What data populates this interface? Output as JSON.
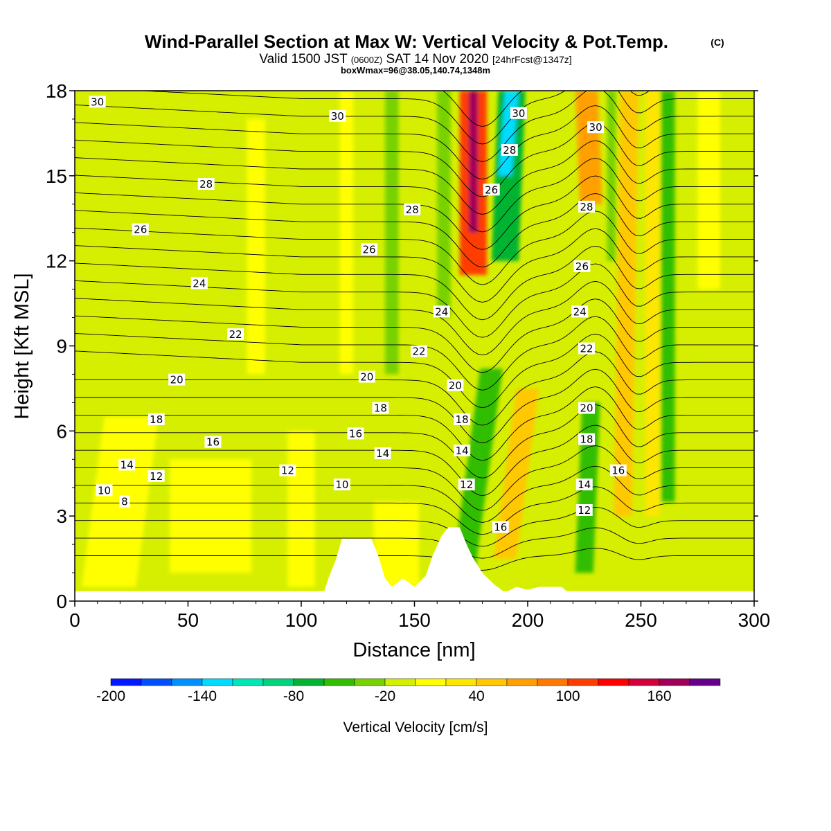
{
  "title": "Wind-Parallel Section at Max W: Vertical Velocity & Pot.Temp.",
  "copyright_mark": "(C)",
  "valid_line": {
    "prefix": "Valid 1500 JST",
    "utc": "(0600Z)",
    "date": "SAT 14 Nov 2020",
    "forecast": "[24hrFcst@1347z]"
  },
  "box_line": "boxWmax=96@38.05,140.74,1348m",
  "colors": {
    "background_field": "#d6ef00",
    "terrain": "#ffffff"
  },
  "chart_data": {
    "type": "heatmap",
    "xlabel": "Distance [nm]",
    "ylabel": "Height [Kft MSL]",
    "xlim": [
      0,
      300
    ],
    "ylim": [
      0,
      18
    ],
    "x_ticks": [
      "0",
      "50",
      "100",
      "150",
      "200",
      "250",
      "300"
    ],
    "y_ticks": [
      "0",
      "3",
      "6",
      "9",
      "12",
      "15",
      "18"
    ],
    "x_tick_values": [
      0,
      50,
      100,
      150,
      200,
      250,
      300
    ],
    "y_tick_values": [
      0,
      3,
      6,
      9,
      12,
      15,
      18
    ],
    "colorbar": {
      "label": "Vertical Velocity [cm/s]",
      "tick_labels": [
        "-200",
        "-140",
        "-80",
        "-20",
        "40",
        "100",
        "160"
      ],
      "tick_values": [
        -200,
        -140,
        -80,
        -20,
        40,
        100,
        160
      ],
      "bins": [
        -200,
        -180,
        -160,
        -140,
        -120,
        -100,
        -80,
        -60,
        -40,
        -20,
        0,
        20,
        40,
        60,
        80,
        100,
        120,
        140,
        160,
        180,
        200
      ],
      "colors": [
        "#0019ff",
        "#0050ff",
        "#0090ff",
        "#00dcff",
        "#00e6b4",
        "#00d27d",
        "#00b432",
        "#32be00",
        "#78d200",
        "#d2f000",
        "#ffff00",
        "#ffe600",
        "#ffc800",
        "#ffa000",
        "#ff7800",
        "#ff3c00",
        "#ff0000",
        "#d2003c",
        "#a0005a",
        "#64008c"
      ]
    },
    "terrain_nm_kft": [
      [
        110,
        0.3
      ],
      [
        112,
        0.8
      ],
      [
        115,
        1.4
      ],
      [
        118,
        2.2
      ],
      [
        131,
        2.2
      ],
      [
        134,
        1.6
      ],
      [
        137,
        0.8
      ],
      [
        140,
        0.5
      ],
      [
        145,
        0.8
      ],
      [
        150,
        0.5
      ],
      [
        155,
        0.9
      ],
      [
        158,
        1.6
      ],
      [
        162,
        2.3
      ],
      [
        165,
        2.6
      ],
      [
        170,
        2.6
      ],
      [
        173,
        2.0
      ],
      [
        176,
        1.5
      ],
      [
        180,
        1.0
      ],
      [
        185,
        0.6
      ],
      [
        190,
        0.3
      ],
      [
        195,
        0.5
      ],
      [
        200,
        0.4
      ],
      [
        205,
        0.5
      ],
      [
        210,
        0.5
      ],
      [
        215,
        0.5
      ],
      [
        218,
        0.3
      ]
    ],
    "velocity_features": [
      {
        "x": 176,
        "x_top": 176,
        "y_bottom": 11.5,
        "y_top": 18,
        "half_width_nm": 6,
        "value_cms": 110
      },
      {
        "x": 176,
        "x_top": 176,
        "y_bottom": 13,
        "y_top": 18,
        "half_width_nm": 2,
        "value_cms": 170
      },
      {
        "x": 190,
        "x_top": 193,
        "y_bottom": 12,
        "y_top": 18,
        "half_width_nm": 6,
        "value_cms": -80
      },
      {
        "x": 190,
        "x_top": 193,
        "y_bottom": 15,
        "y_top": 18,
        "half_width_nm": 3,
        "value_cms": -130
      },
      {
        "x": 228,
        "x_top": 226,
        "y_bottom": 14,
        "y_top": 18,
        "half_width_nm": 5,
        "value_cms": 70
      },
      {
        "x": 172,
        "x_top": 184,
        "y_bottom": 1.2,
        "y_top": 8.2,
        "half_width_nm": 5,
        "value_cms": -60
      },
      {
        "x": 190,
        "x_top": 200,
        "y_bottom": 1.5,
        "y_top": 7.5,
        "half_width_nm": 5,
        "value_cms": 50
      },
      {
        "x": 225,
        "x_top": 228,
        "y_bottom": 1.0,
        "y_top": 7.0,
        "half_width_nm": 4,
        "value_cms": -50
      },
      {
        "x": 242,
        "x_top": 245,
        "y_bottom": 3.0,
        "y_top": 18,
        "half_width_nm": 4,
        "value_cms": 40
      },
      {
        "x": 262,
        "x_top": 262,
        "y_bottom": 3.5,
        "y_top": 18,
        "half_width_nm": 3,
        "value_cms": -50
      },
      {
        "x": 237,
        "x_top": 237,
        "y_bottom": 12,
        "y_top": 18,
        "half_width_nm": 2,
        "value_cms": -40
      },
      {
        "x": 255,
        "x_top": 255,
        "y_bottom": 3,
        "y_top": 18,
        "half_width_nm": 3,
        "value_cms": 30
      },
      {
        "x": 120,
        "x_top": 120,
        "y_bottom": 8,
        "y_top": 18,
        "half_width_nm": 3,
        "value_cms": 10
      },
      {
        "x": 80,
        "x_top": 80,
        "y_bottom": 8,
        "y_top": 17,
        "half_width_nm": 4,
        "value_cms": 10
      },
      {
        "x": 140,
        "x_top": 140,
        "y_bottom": 8,
        "y_top": 18,
        "half_width_nm": 3,
        "value_cms": -30
      },
      {
        "x": 163,
        "x_top": 163,
        "y_bottom": 10,
        "y_top": 18,
        "half_width_nm": 3,
        "value_cms": -40
      },
      {
        "x": 280,
        "x_top": 280,
        "y_bottom": 11,
        "y_top": 18,
        "half_width_nm": 5,
        "value_cms": 10
      },
      {
        "x": 15,
        "x_top": 25,
        "y_bottom": 0.5,
        "y_top": 6.5,
        "half_width_nm": 12,
        "value_cms": 10
      },
      {
        "x": 60,
        "x_top": 60,
        "y_bottom": 1,
        "y_top": 5,
        "half_width_nm": 18,
        "value_cms": 10
      },
      {
        "x": 100,
        "x_top": 100,
        "y_bottom": 0.5,
        "y_top": 6,
        "half_width_nm": 6,
        "value_cms": 10
      },
      {
        "x": 142,
        "x_top": 142,
        "y_bottom": 0.5,
        "y_top": 3.5,
        "half_width_nm": 10,
        "value_cms": 10
      }
    ],
    "theta_contour_labels": [
      {
        "text": "30",
        "x": 10,
        "y": 17.6
      },
      {
        "text": "30",
        "x": 116,
        "y": 17.1
      },
      {
        "text": "30",
        "x": 196,
        "y": 17.2
      },
      {
        "text": "30",
        "x": 230,
        "y": 16.7
      },
      {
        "text": "28",
        "x": 58,
        "y": 14.7
      },
      {
        "text": "28",
        "x": 149,
        "y": 13.8
      },
      {
        "text": "28",
        "x": 192,
        "y": 15.9
      },
      {
        "text": "28",
        "x": 226,
        "y": 13.9
      },
      {
        "text": "26",
        "x": 29,
        "y": 13.1
      },
      {
        "text": "26",
        "x": 130,
        "y": 12.4
      },
      {
        "text": "26",
        "x": 184,
        "y": 14.5
      },
      {
        "text": "26",
        "x": 224,
        "y": 11.8
      },
      {
        "text": "24",
        "x": 55,
        "y": 11.2
      },
      {
        "text": "24",
        "x": 162,
        "y": 10.2
      },
      {
        "text": "24",
        "x": 223,
        "y": 10.2
      },
      {
        "text": "22",
        "x": 71,
        "y": 9.4
      },
      {
        "text": "22",
        "x": 152,
        "y": 8.8
      },
      {
        "text": "22",
        "x": 226,
        "y": 8.9
      },
      {
        "text": "20",
        "x": 45,
        "y": 7.8
      },
      {
        "text": "20",
        "x": 129,
        "y": 7.9
      },
      {
        "text": "20",
        "x": 168,
        "y": 7.6
      },
      {
        "text": "20",
        "x": 226,
        "y": 6.8
      },
      {
        "text": "18",
        "x": 36,
        "y": 6.4
      },
      {
        "text": "18",
        "x": 135,
        "y": 6.8
      },
      {
        "text": "18",
        "x": 171,
        "y": 6.4
      },
      {
        "text": "18",
        "x": 226,
        "y": 5.7
      },
      {
        "text": "16",
        "x": 61,
        "y": 5.6
      },
      {
        "text": "16",
        "x": 124,
        "y": 5.9
      },
      {
        "text": "16",
        "x": 188,
        "y": 2.6
      },
      {
        "text": "16",
        "x": 240,
        "y": 4.6
      },
      {
        "text": "14",
        "x": 23,
        "y": 4.8
      },
      {
        "text": "14",
        "x": 136,
        "y": 5.2
      },
      {
        "text": "14",
        "x": 171,
        "y": 5.3
      },
      {
        "text": "14",
        "x": 225,
        "y": 4.1
      },
      {
        "text": "12",
        "x": 36,
        "y": 4.4
      },
      {
        "text": "12",
        "x": 94,
        "y": 4.6
      },
      {
        "text": "12",
        "x": 173,
        "y": 4.1
      },
      {
        "text": "12",
        "x": 225,
        "y": 3.2
      },
      {
        "text": "10",
        "x": 13,
        "y": 3.9
      },
      {
        "text": "10",
        "x": 118,
        "y": 4.1
      },
      {
        "text": "8",
        "x": 22,
        "y": 3.5
      }
    ]
  }
}
